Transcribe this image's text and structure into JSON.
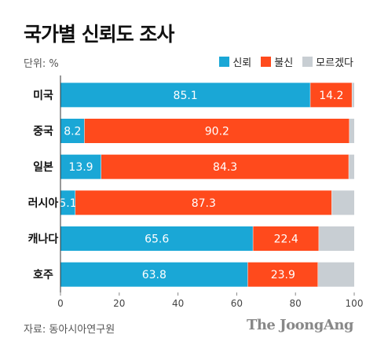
{
  "header": {
    "title": "국가별 신뢰도 조사",
    "unit": "단위: %"
  },
  "footer": {
    "source": "자료: 동아시아연구원",
    "brand": "The JoongAng"
  },
  "colors": {
    "trust": "#1aa7d6",
    "distrust": "#ff4a1c",
    "unknown": "#c8ced3"
  },
  "chart_data": {
    "type": "bar",
    "orientation": "horizontal",
    "stacked": true,
    "categories": [
      "미국",
      "중국",
      "일본",
      "러시아",
      "캐나다",
      "호주"
    ],
    "series": [
      {
        "name": "신뢰",
        "values": [
          85.1,
          8.2,
          13.9,
          5.1,
          65.6,
          63.8
        ]
      },
      {
        "name": "불신",
        "values": [
          14.2,
          90.2,
          84.3,
          87.3,
          22.4,
          23.9
        ]
      },
      {
        "name": "모르겠다",
        "values": [
          0.7,
          1.6,
          1.8,
          7.6,
          12.0,
          12.3
        ]
      }
    ],
    "data_labels": {
      "신뢰": [
        "85.1",
        "8.2",
        "13.9",
        "5.1",
        "65.6",
        "63.8"
      ],
      "불신": [
        "14.2",
        "90.2",
        "84.3",
        "87.3",
        "22.4",
        "23.9"
      ]
    },
    "xlim": [
      0,
      100
    ],
    "xticks": [
      "0",
      "20",
      "40",
      "60",
      "80",
      "100"
    ],
    "legend": "top-right",
    "grid": false
  }
}
